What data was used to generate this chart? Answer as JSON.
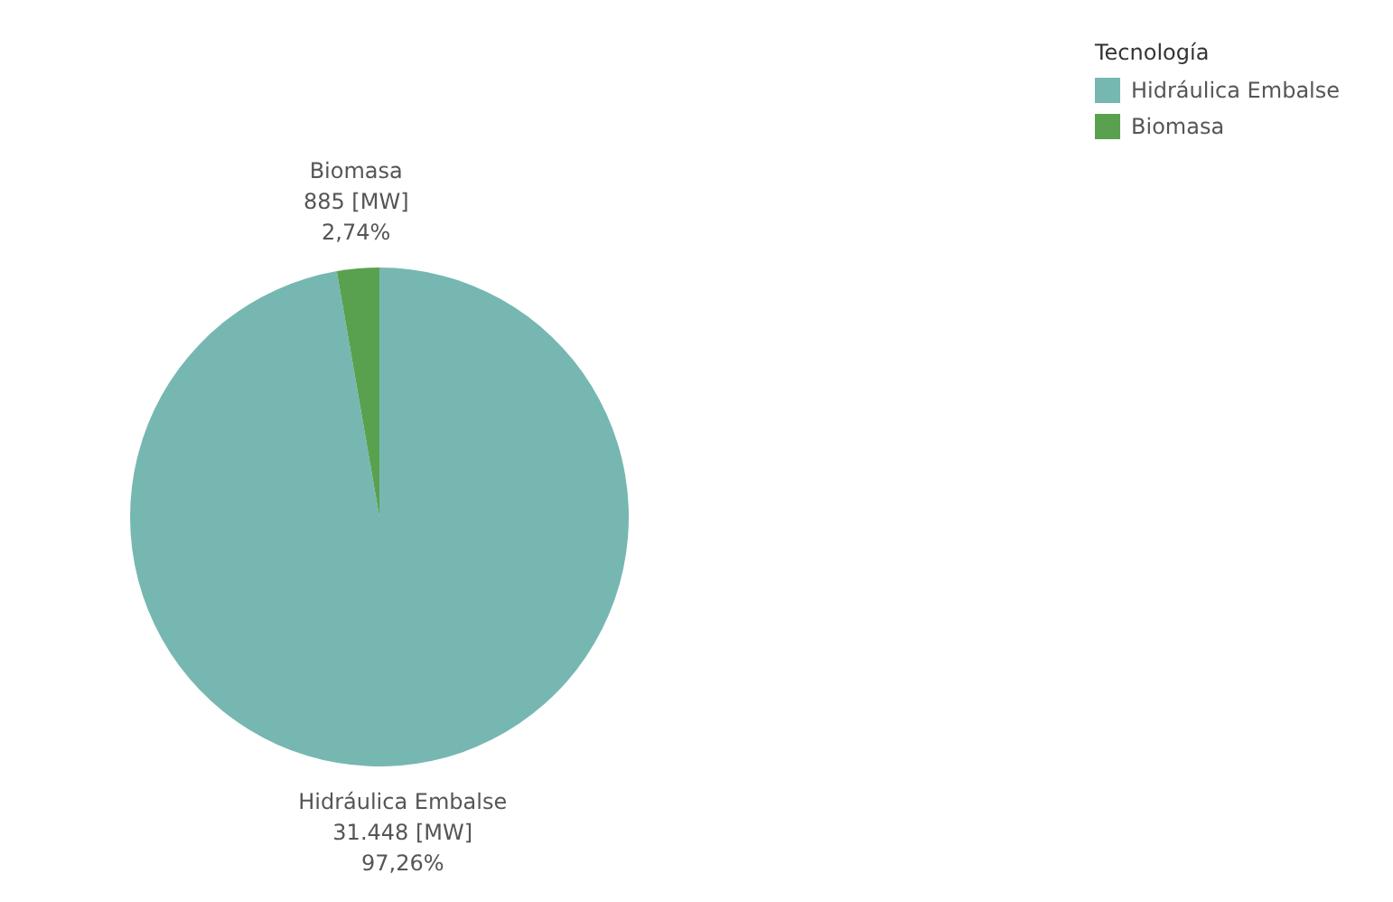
{
  "chart_data": {
    "type": "pie",
    "legend_title": "Tecnología",
    "categories": [
      "Hidráulica Embalse",
      "Biomasa"
    ],
    "values": [
      31448,
      885
    ],
    "colors": [
      "#76b7b2",
      "#59a14f"
    ],
    "value_labels": [
      "31.448 [MW]\n97,26%",
      "885 [MW]\n2,74%"
    ],
    "legend": "top right"
  }
}
